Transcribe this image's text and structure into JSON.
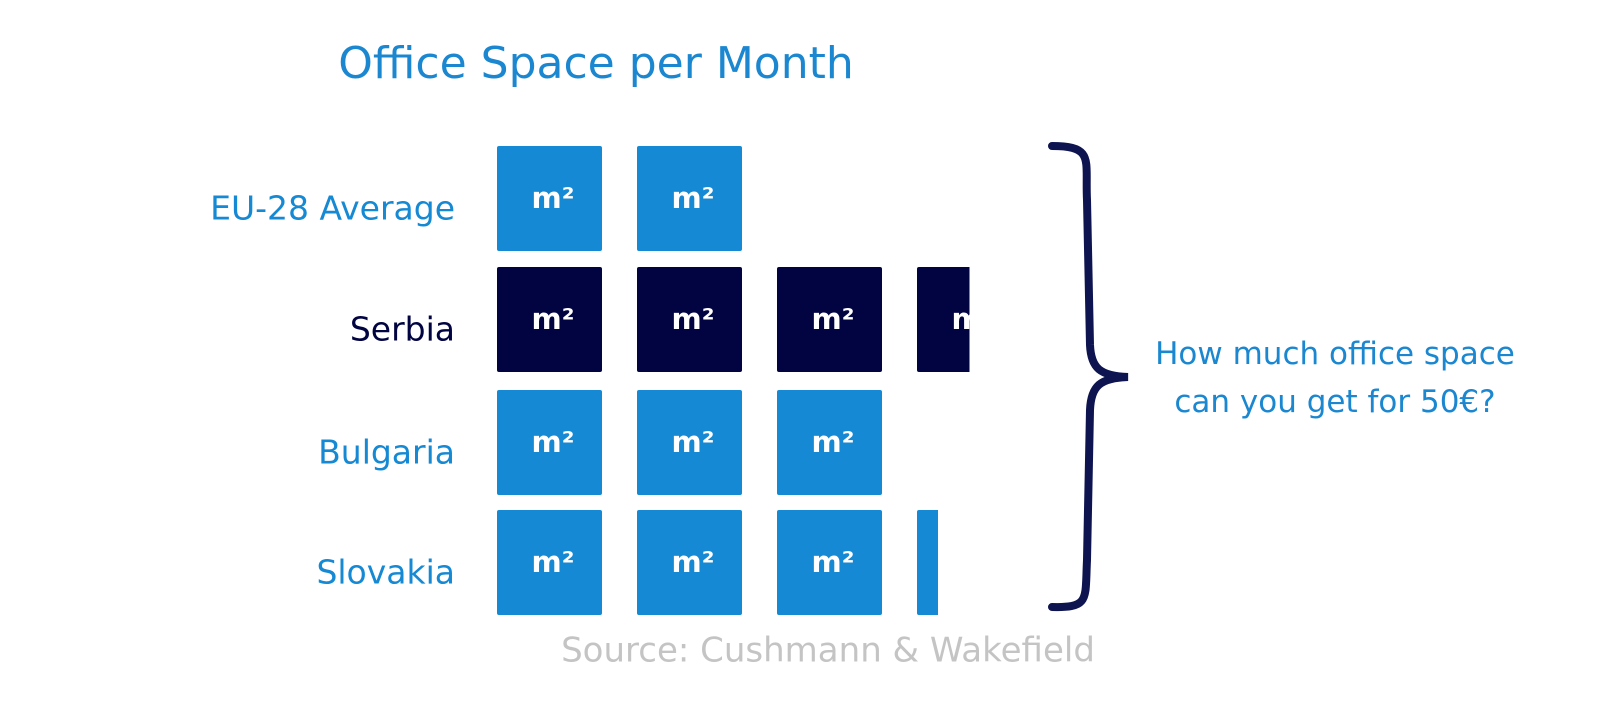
{
  "chart_data": {
    "type": "pictograph",
    "title": "Office Space per Month",
    "categories": [
      "EU-28 Average",
      "Serbia",
      "Bulgaria",
      "Slovakia"
    ],
    "values": [
      2,
      3.5,
      3,
      3.2
    ],
    "colors": [
      "#1589d3",
      "#020442",
      "#1589d3",
      "#1589d3"
    ],
    "icon_label": "m²",
    "annotation": "How much office space can you get for 50€?",
    "source": "Source: Cushmann & Wakefield"
  }
}
